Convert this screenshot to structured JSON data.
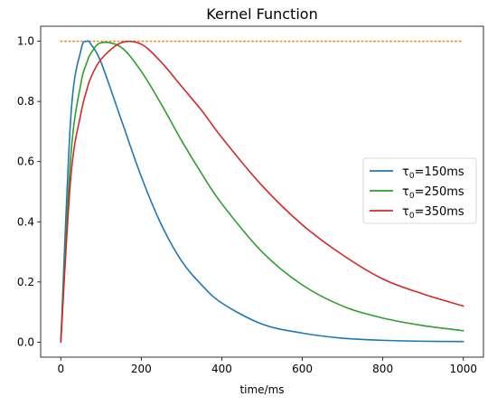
{
  "chart_data": {
    "type": "line",
    "title": "Kernel Function",
    "xlabel": "time/ms",
    "ylabel": "",
    "xlim": [
      -50,
      1050
    ],
    "ylim": [
      -0.05,
      1.05
    ],
    "xticks": [
      0,
      200,
      400,
      600,
      800,
      1000
    ],
    "yticks": [
      0.0,
      0.2,
      0.4,
      0.6,
      0.8,
      1.0
    ],
    "xtick_labels": [
      "0",
      "200",
      "400",
      "600",
      "800",
      "1000"
    ],
    "ytick_labels": [
      "0.0",
      "0.2",
      "0.4",
      "0.6",
      "0.8",
      "1.0"
    ],
    "grid": false,
    "legend_position": "center-right",
    "x": [
      0,
      25,
      50,
      65,
      75,
      100,
      150,
      200,
      250,
      300,
      350,
      400,
      500,
      600,
      700,
      800,
      900,
      1000
    ],
    "series": [
      {
        "legend_base": "τ",
        "legend_sub": "0",
        "legend_rest": "=150ms",
        "color": "#1f77b4",
        "values": [
          0.0,
          0.75,
          0.97,
          1.0,
          0.99,
          0.93,
          0.74,
          0.55,
          0.39,
          0.27,
          0.19,
          0.13,
          0.06,
          0.03,
          0.013,
          0.006,
          0.003,
          0.002
        ]
      },
      {
        "legend_base": "τ",
        "legend_sub": "0",
        "legend_rest": "=250ms",
        "color": "#2ca02c",
        "values": [
          0.0,
          0.62,
          0.86,
          0.93,
          0.96,
          0.995,
          0.98,
          0.9,
          0.79,
          0.67,
          0.56,
          0.46,
          0.3,
          0.19,
          0.12,
          0.08,
          0.055,
          0.038
        ]
      },
      {
        "legend_base": "τ",
        "legend_sub": "0",
        "legend_rest": "=350ms",
        "color": "#d62728",
        "values": [
          0.0,
          0.55,
          0.76,
          0.84,
          0.88,
          0.94,
          0.995,
          0.99,
          0.93,
          0.85,
          0.77,
          0.68,
          0.52,
          0.39,
          0.29,
          0.21,
          0.16,
          0.12
        ]
      }
    ],
    "reference_line": {
      "y": 1.0,
      "color": "#ff7f0e",
      "style": "dotted"
    }
  }
}
